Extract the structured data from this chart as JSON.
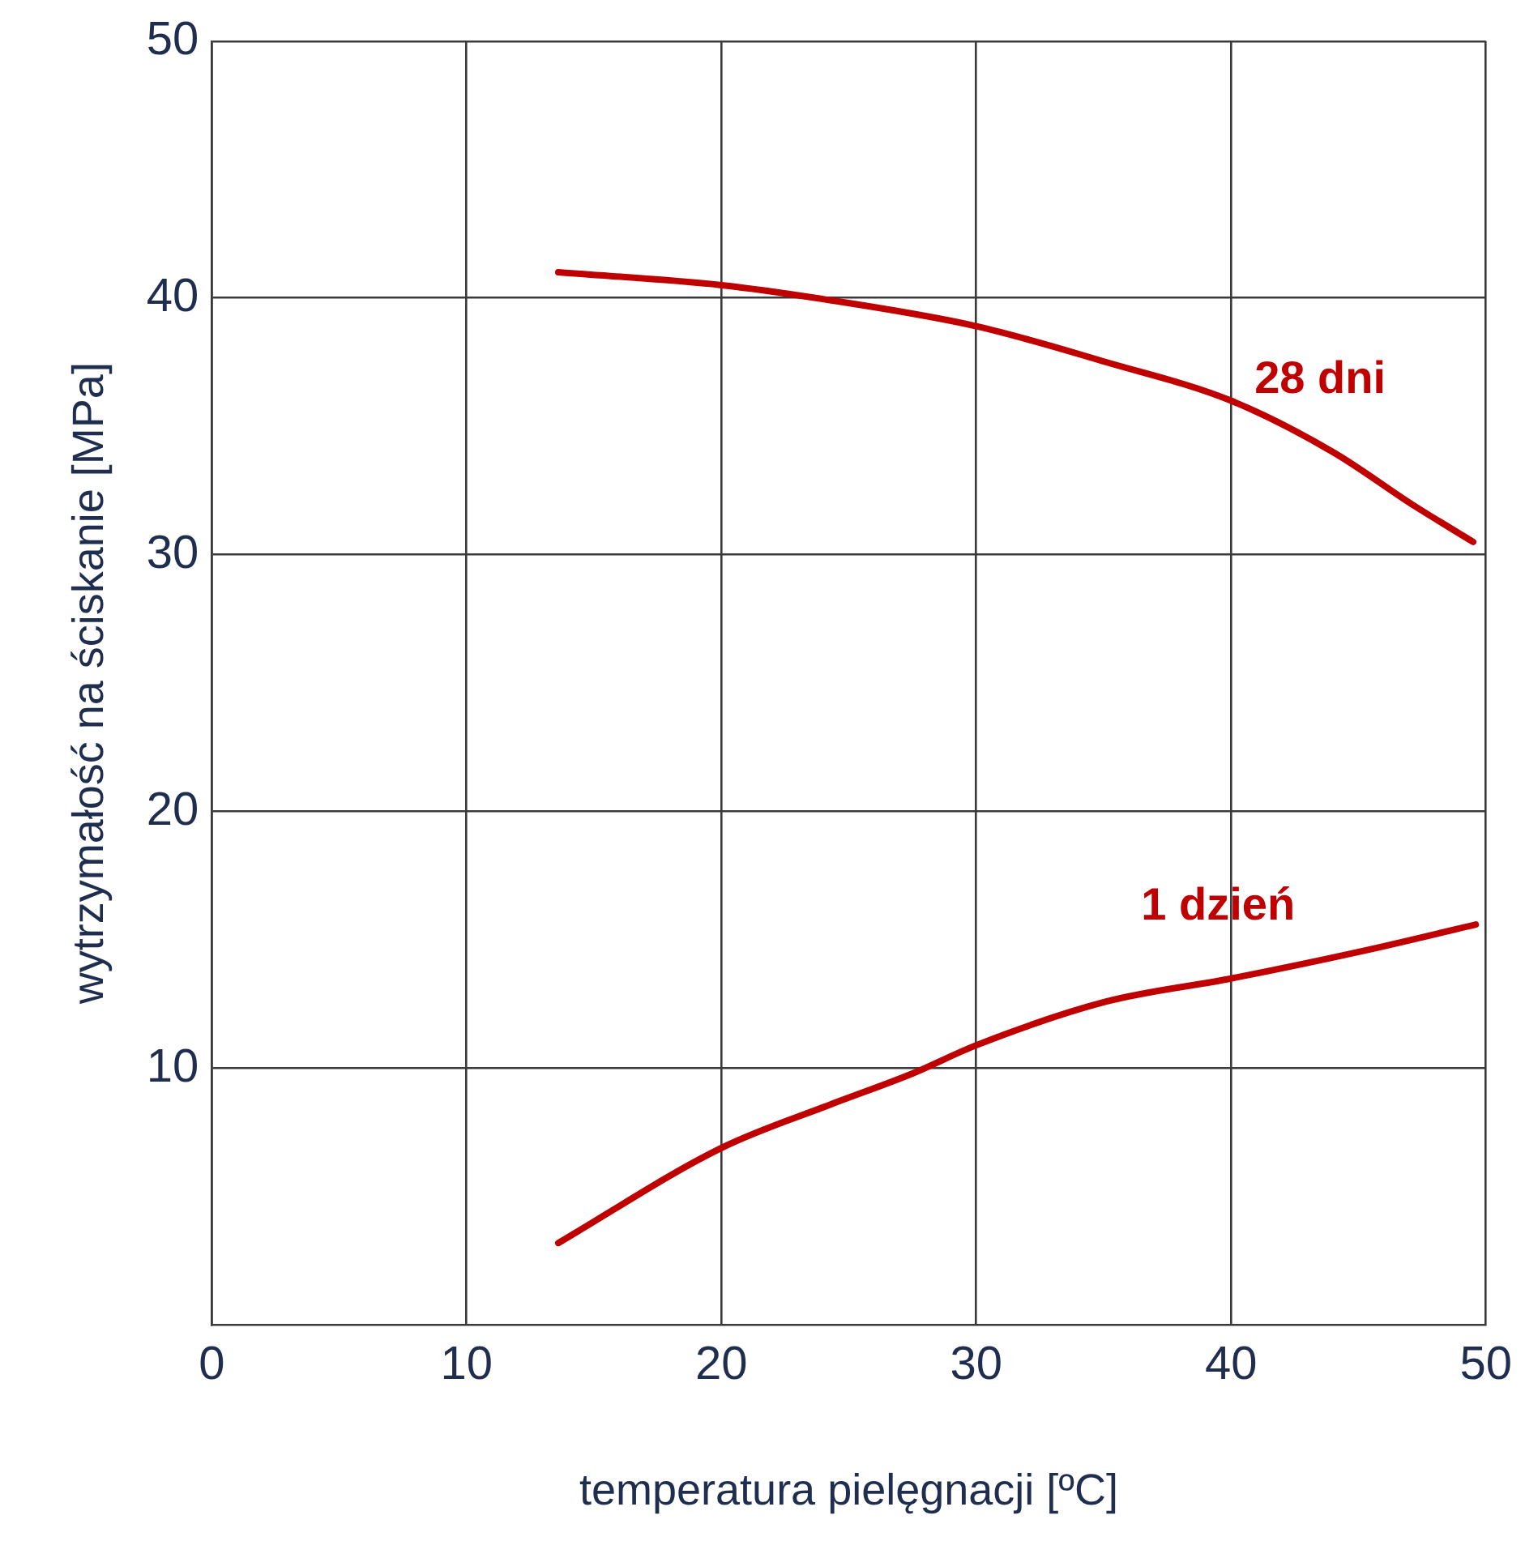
{
  "chart_data": {
    "type": "line",
    "xlabel": "temperatura pielęgnacji [ºC]",
    "ylabel": "wytrzymałość na ściskanie [MPa]",
    "xlim": [
      0,
      50
    ],
    "ylim": [
      0,
      50
    ],
    "xticks": [
      0,
      10,
      20,
      30,
      40,
      50
    ],
    "yticks": [
      10,
      20,
      30,
      40,
      50
    ],
    "grid": true,
    "legend": false,
    "marker": "none",
    "line_style": "solid",
    "series": [
      {
        "name": "28 dni",
        "color": "#c00000",
        "x": [
          13.6,
          20,
          23.7,
          30,
          35.1,
          40,
          44,
          47.2,
          49.5
        ],
        "values": [
          41.0,
          40.5,
          40.0,
          38.9,
          37.5,
          36.0,
          34.0,
          31.9,
          30.5
        ]
      },
      {
        "name": "1 dzień",
        "color": "#c00000",
        "x": [
          13.6,
          20,
          24.3,
          27.5,
          30,
          35.1,
          40,
          45.3,
          49.6
        ],
        "values": [
          3.2,
          6.9,
          8.6,
          9.8,
          10.9,
          12.6,
          13.5,
          14.6,
          15.6
        ]
      }
    ]
  }
}
